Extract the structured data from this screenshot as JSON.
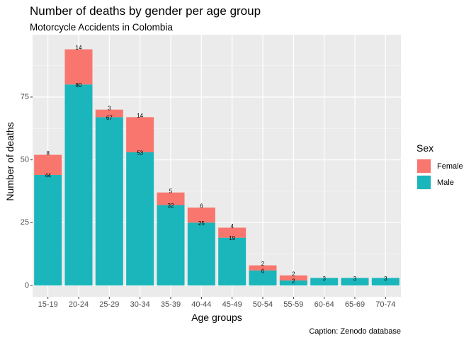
{
  "chart_data": {
    "type": "bar",
    "stacked": true,
    "title": "Number of deaths by gender per age group",
    "subtitle": "Motorcycle Accidents in Colombia",
    "xlabel": "Age groups",
    "ylabel": "Number of deaths",
    "caption": "Caption: Zenodo database",
    "categories": [
      "15-19",
      "20-24",
      "25-29",
      "30-34",
      "35-39",
      "40-44",
      "45-49",
      "50-54",
      "55-59",
      "60-64",
      "65-69",
      "70-74"
    ],
    "series": [
      {
        "name": "Male",
        "color": "#1ab6bc",
        "values": [
          44,
          80,
          67,
          53,
          32,
          25,
          19,
          6,
          2,
          3,
          3,
          3
        ]
      },
      {
        "name": "Female",
        "color": "#f8766d",
        "values": [
          8,
          14,
          3,
          14,
          5,
          6,
          4,
          2,
          2,
          0,
          0,
          0
        ]
      }
    ],
    "ylim": [
      0,
      97
    ],
    "yticks": [
      0,
      25,
      50,
      75
    ],
    "grid": true,
    "legend": {
      "title": "Sex",
      "placement": "right",
      "entries": [
        {
          "label": "Female",
          "color": "#f8766d"
        },
        {
          "label": "Male",
          "color": "#1ab6bc"
        }
      ]
    },
    "panel_background": "#ebebeb"
  }
}
